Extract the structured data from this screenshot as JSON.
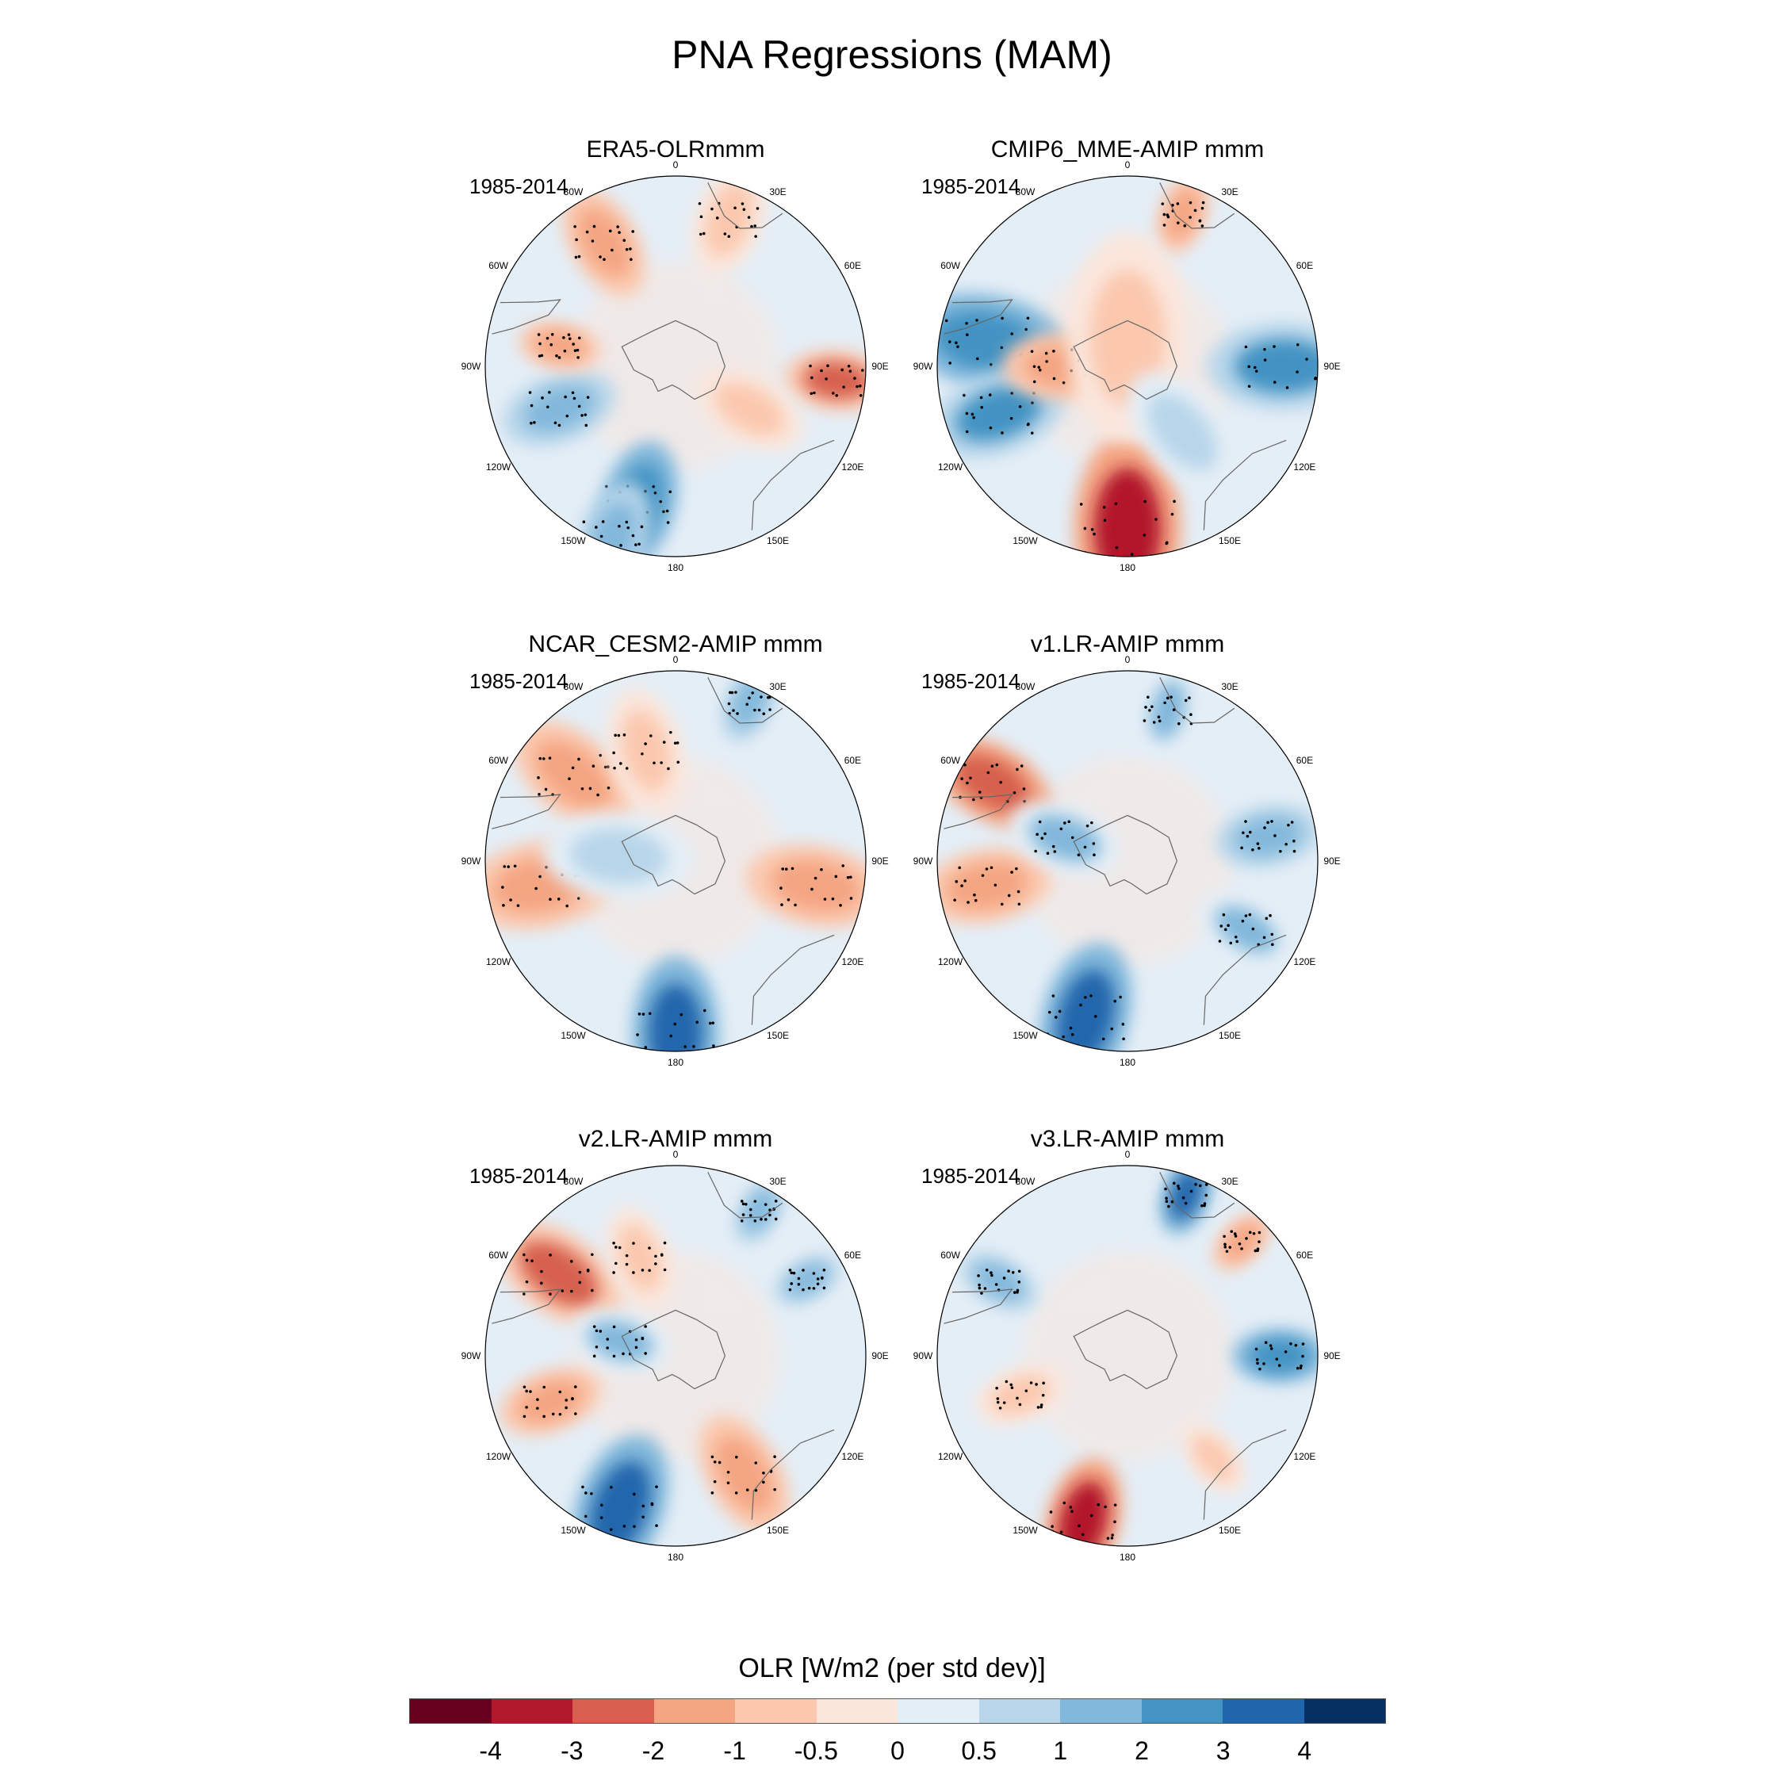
{
  "title": "PNA Regressions (MAM)",
  "colorbar": {
    "title": "OLR [W/m2 (per std dev)]",
    "ticks": [
      "-4",
      "-3",
      "-2",
      "-1",
      "-0.5",
      "0",
      "0.5",
      "1",
      "2",
      "3",
      "4"
    ],
    "colors": [
      "#67001f",
      "#b2182b",
      "#d6604d",
      "#f4a582",
      "#fbc8ae",
      "#fbe6dc",
      "#e4eef6",
      "#b8d6ea",
      "#82b8db",
      "#4393c3",
      "#2166ac",
      "#053061"
    ]
  },
  "longitude_labels": [
    "0",
    "30E",
    "60E",
    "90E",
    "120E",
    "150E",
    "180",
    "150W",
    "120W",
    "90W",
    "60W",
    "30W"
  ],
  "panels": [
    {
      "title": "ERA5-OLRmmm",
      "period": "1985-2014",
      "blobs": [
        {
          "lon": 330,
          "r": 0.75,
          "size": 0.1,
          "v": -1.4
        },
        {
          "lon": 20,
          "r": 0.82,
          "size": 0.1,
          "v": -1.0
        },
        {
          "lon": 95,
          "r": 0.85,
          "size": 0.09,
          "v": -2.2
        },
        {
          "lon": 195,
          "r": 0.75,
          "size": 0.11,
          "v": 2.4
        },
        {
          "lon": 250,
          "r": 0.65,
          "size": 0.1,
          "v": 1.6
        },
        {
          "lon": 280,
          "r": 0.62,
          "size": 0.07,
          "v": -1.8
        },
        {
          "lon": 120,
          "r": 0.45,
          "size": 0.1,
          "v": -0.7
        },
        {
          "lon": 200,
          "r": 0.96,
          "size": 0.1,
          "v": 1.8
        }
      ]
    },
    {
      "title": "CMIP6_MME-AMIP  mmm",
      "period": "1985-2014",
      "blobs": [
        {
          "lon": 180,
          "r": 0.85,
          "size": 0.16,
          "v": -3.8
        },
        {
          "lon": 280,
          "r": 0.75,
          "size": 0.14,
          "v": 2.6
        },
        {
          "lon": 250,
          "r": 0.72,
          "size": 0.12,
          "v": 2.0
        },
        {
          "lon": 90,
          "r": 0.82,
          "size": 0.13,
          "v": 2.2
        },
        {
          "lon": 20,
          "r": 0.85,
          "size": 0.07,
          "v": -1.8
        },
        {
          "lon": 270,
          "r": 0.35,
          "size": 0.1,
          "v": -1.2
        },
        {
          "lon": 0,
          "r": 0.15,
          "size": 0.18,
          "v": -0.8
        },
        {
          "lon": 140,
          "r": 0.45,
          "size": 0.12,
          "v": 0.7
        }
      ]
    },
    {
      "title": "NCAR_CESM2-AMIP  mmm",
      "period": "1985-2014",
      "blobs": [
        {
          "lon": 310,
          "r": 0.7,
          "size": 0.12,
          "v": -1.6
        },
        {
          "lon": 345,
          "r": 0.6,
          "size": 0.11,
          "v": -1.0
        },
        {
          "lon": 100,
          "r": 0.75,
          "size": 0.12,
          "v": -1.5
        },
        {
          "lon": 180,
          "r": 0.9,
          "size": 0.13,
          "v": 3.2
        },
        {
          "lon": 260,
          "r": 0.72,
          "size": 0.13,
          "v": -2.0
        },
        {
          "lon": 275,
          "r": 0.3,
          "size": 0.13,
          "v": 0.8
        },
        {
          "lon": 25,
          "r": 0.92,
          "size": 0.07,
          "v": 1.4
        }
      ]
    },
    {
      "title": "v1.LR-AMIP  mmm",
      "period": "1985-2014",
      "blobs": [
        {
          "lon": 300,
          "r": 0.82,
          "size": 0.11,
          "v": -2.5
        },
        {
          "lon": 260,
          "r": 0.75,
          "size": 0.11,
          "v": -1.6
        },
        {
          "lon": 195,
          "r": 0.85,
          "size": 0.13,
          "v": 3.0
        },
        {
          "lon": 80,
          "r": 0.75,
          "size": 0.09,
          "v": 1.2
        },
        {
          "lon": 120,
          "r": 0.72,
          "size": 0.09,
          "v": 1.0
        },
        {
          "lon": 290,
          "r": 0.35,
          "size": 0.1,
          "v": 1.0
        },
        {
          "lon": 15,
          "r": 0.82,
          "size": 0.08,
          "v": 1.0
        }
      ]
    },
    {
      "title": "v2.LR-AMIP  mmm",
      "period": "1985-2014",
      "blobs": [
        {
          "lon": 305,
          "r": 0.75,
          "size": 0.12,
          "v": -2.2
        },
        {
          "lon": 340,
          "r": 0.55,
          "size": 0.09,
          "v": -1.0
        },
        {
          "lon": 200,
          "r": 0.85,
          "size": 0.13,
          "v": 3.2
        },
        {
          "lon": 150,
          "r": 0.72,
          "size": 0.11,
          "v": -1.6
        },
        {
          "lon": 250,
          "r": 0.7,
          "size": 0.09,
          "v": -1.2
        },
        {
          "lon": 285,
          "r": 0.3,
          "size": 0.09,
          "v": 1.0
        },
        {
          "lon": 30,
          "r": 0.88,
          "size": 0.06,
          "v": 1.6
        },
        {
          "lon": 60,
          "r": 0.8,
          "size": 0.06,
          "v": 1.8
        }
      ]
    },
    {
      "title": "v3.LR-AMIP  mmm",
      "period": "1985-2014",
      "blobs": [
        {
          "lon": 195,
          "r": 0.9,
          "size": 0.11,
          "v": -3.2
        },
        {
          "lon": 20,
          "r": 0.9,
          "size": 0.07,
          "v": 3.0
        },
        {
          "lon": 90,
          "r": 0.8,
          "size": 0.08,
          "v": 2.4
        },
        {
          "lon": 300,
          "r": 0.78,
          "size": 0.07,
          "v": 1.6
        },
        {
          "lon": 250,
          "r": 0.6,
          "size": 0.08,
          "v": -1.0
        },
        {
          "lon": 45,
          "r": 0.85,
          "size": 0.06,
          "v": -1.2
        },
        {
          "lon": 140,
          "r": 0.7,
          "size": 0.07,
          "v": -0.8
        }
      ]
    }
  ]
}
